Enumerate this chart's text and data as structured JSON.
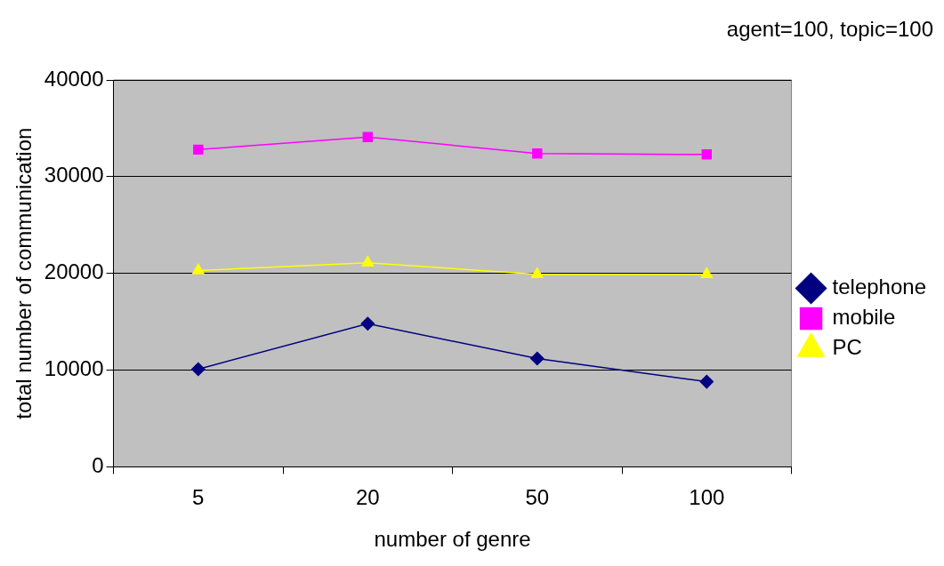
{
  "chart_data": {
    "type": "line",
    "xlabel": "number of genre",
    "ylabel": "total number of communication",
    "annotations": [
      "agent=100, topic=100"
    ],
    "categories": [
      "5",
      "20",
      "50",
      "100"
    ],
    "series": [
      {
        "name": "telephone",
        "color": "#000080",
        "marker": "diamond",
        "values": [
          10100,
          14800,
          11200,
          8800
        ]
      },
      {
        "name": "mobile",
        "color": "#ff00ff",
        "marker": "square",
        "values": [
          32800,
          34100,
          32400,
          32300
        ]
      },
      {
        "name": "PC",
        "color": "#ffff00",
        "marker": "triangle",
        "values": [
          20300,
          21100,
          19900,
          19900
        ]
      }
    ],
    "ylim": [
      0,
      40000
    ],
    "yticks": [
      0,
      10000,
      20000,
      30000,
      40000
    ],
    "grid": "y",
    "legend": "right"
  }
}
